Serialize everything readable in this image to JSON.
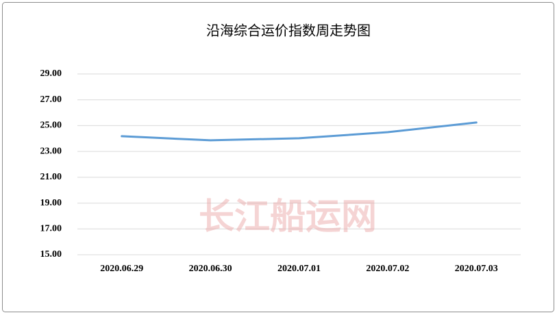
{
  "chart_data": {
    "type": "line",
    "title": "沿海综合运价指数周走势图",
    "categories": [
      "2020.06.29",
      "2020.06.30",
      "2020.07.01",
      "2020.07.02",
      "2020.07.03"
    ],
    "series": [
      {
        "name": "沿海综合运价指数",
        "color": "#5b9bd5",
        "values": [
          24.18,
          23.86,
          24.02,
          24.49,
          25.24
        ]
      }
    ],
    "ylim": [
      15,
      29
    ],
    "yticks": [
      {
        "value": 15,
        "label": "15.00"
      },
      {
        "value": 17,
        "label": "17.00"
      },
      {
        "value": 19,
        "label": "19.00"
      },
      {
        "value": 21,
        "label": "21.00"
      },
      {
        "value": 23,
        "label": "23.00"
      },
      {
        "value": 25,
        "label": "25.00"
      },
      {
        "value": 27,
        "label": "27.00"
      },
      {
        "value": 29,
        "label": "29.00"
      }
    ],
    "grid": true,
    "watermark": "长江船运网"
  }
}
